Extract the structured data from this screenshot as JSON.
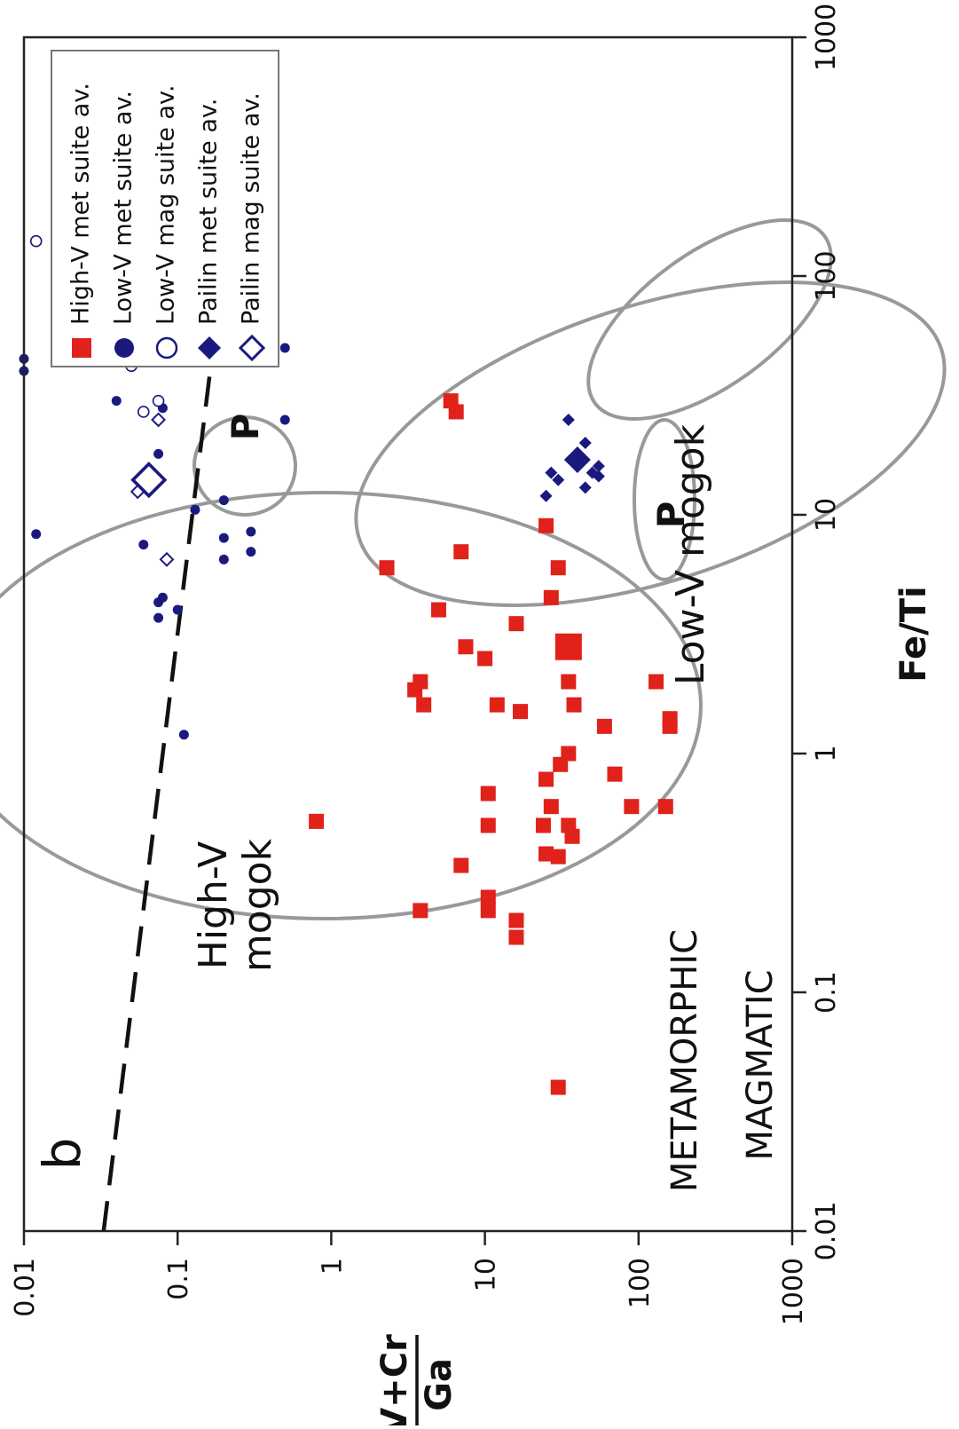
{
  "chart_data": {
    "type": "scatter",
    "panel_label": "b",
    "x_axis": {
      "scale": "log",
      "range": [
        0.01,
        1000
      ],
      "ticks": [
        0.01,
        0.1,
        1,
        10,
        100,
        1000
      ],
      "tick_labels": [
        "0.01",
        "0.1",
        "1",
        "10",
        "100",
        "1000"
      ],
      "label": "Fe/Ti"
    },
    "y_axis": {
      "scale": "log",
      "range": [
        0.01,
        1000
      ],
      "ticks": [
        0.01,
        0.1,
        1,
        10,
        100,
        1000
      ],
      "tick_labels": [
        "0.01",
        "0.1",
        "1",
        "10",
        "100",
        "1000"
      ],
      "label_numerator": "V+Cr",
      "label_denominator": "Ga"
    },
    "grid": false,
    "legend_position": "top-left",
    "colors": {
      "high_v": "#e0221a",
      "blue": "#1a1a7e",
      "ellipse": "#999999"
    },
    "series": [
      {
        "name": "High-V met suite av.",
        "marker": "square-filled",
        "color": "#e0221a",
        "points": [
          [
            0.04,
            30
          ],
          [
            0.17,
            16
          ],
          [
            0.2,
            16
          ],
          [
            0.22,
            10.5
          ],
          [
            0.25,
            10.5
          ],
          [
            0.22,
            3.8
          ],
          [
            0.34,
            7
          ],
          [
            0.37,
            30
          ],
          [
            0.38,
            25
          ],
          [
            0.45,
            37
          ],
          [
            0.5,
            35
          ],
          [
            0.5,
            24
          ],
          [
            0.5,
            10.5
          ],
          [
            0.52,
            0.8
          ],
          [
            0.6,
            150
          ],
          [
            0.6,
            27
          ],
          [
            0.6,
            90
          ],
          [
            0.68,
            10.5
          ],
          [
            0.78,
            25
          ],
          [
            0.82,
            70
          ],
          [
            0.9,
            31
          ],
          [
            1.0,
            35
          ],
          [
            1.3,
            160
          ],
          [
            1.4,
            160
          ],
          [
            1.3,
            60
          ],
          [
            1.5,
            17
          ],
          [
            1.6,
            38
          ],
          [
            1.6,
            12
          ],
          [
            1.6,
            4
          ],
          [
            1.85,
            3.5
          ],
          [
            2.0,
            35
          ],
          [
            2.0,
            3.8
          ],
          [
            2.0,
            130
          ],
          [
            2.5,
            10
          ],
          [
            2.8,
            7.5
          ],
          [
            3.5,
            16
          ],
          [
            4.0,
            5
          ],
          [
            4.5,
            27
          ],
          [
            6.0,
            30
          ],
          [
            6.0,
            2.3
          ],
          [
            7.0,
            7
          ],
          [
            9.0,
            25
          ],
          [
            27,
            6.5
          ],
          [
            30,
            6
          ]
        ],
        "average": [
          2.8,
          35
        ]
      },
      {
        "name": "Low-V met suite av.",
        "marker": "circle-filled",
        "color": "#1a1a7e",
        "points": [
          [
            1.2,
            0.11
          ],
          [
            3.7,
            0.075
          ],
          [
            4.0,
            0.1
          ],
          [
            4.3,
            0.075
          ],
          [
            4.5,
            0.08
          ],
          [
            6.5,
            0.2
          ],
          [
            7.0,
            0.3
          ],
          [
            8.0,
            0.2
          ],
          [
            8.5,
            0.3
          ],
          [
            8.3,
            0.012
          ],
          [
            7.5,
            0.06
          ],
          [
            10.5,
            0.13
          ],
          [
            11.5,
            0.2
          ],
          [
            18.0,
            0.075
          ],
          [
            25,
            0.5
          ],
          [
            28,
            0.08
          ],
          [
            30,
            0.04
          ],
          [
            40,
            0.01
          ],
          [
            45,
            0.01
          ],
          [
            50,
            0.5
          ],
          [
            80,
            0.025
          ],
          [
            85,
            0.06
          ],
          [
            200,
            0.2
          ],
          [
            250,
            0.15
          ],
          [
            260,
            0.13
          ]
        ],
        "average": [
          50,
          0.15
        ]
      },
      {
        "name": "Low-V mag suite av.",
        "marker": "circle-open",
        "color": "#1a1a7e",
        "points": [
          [
            27,
            0.06
          ],
          [
            30,
            0.075
          ],
          [
            42,
            0.05
          ],
          [
            45,
            0.03
          ],
          [
            60,
            0.025
          ],
          [
            120,
            0.035
          ],
          [
            125,
            0.05
          ],
          [
            140,
            0.012
          ]
        ],
        "average": [
          70,
          0.045
        ]
      },
      {
        "name": "Pailin met suite av.",
        "marker": "diamond-filled",
        "color": "#1a1a7e",
        "points": [
          [
            12,
            25
          ],
          [
            13,
            45
          ],
          [
            14,
            30
          ],
          [
            14.5,
            55
          ],
          [
            15,
            50
          ],
          [
            15,
            27
          ],
          [
            16,
            55
          ],
          [
            17,
            38
          ],
          [
            20,
            45
          ],
          [
            25,
            35
          ]
        ],
        "average": [
          17,
          40
        ]
      },
      {
        "name": "Pailin mag suite av.",
        "marker": "diamond-open",
        "color": "#1a1a7e",
        "points": [
          [
            6.5,
            0.085
          ],
          [
            12.5,
            0.055
          ],
          [
            25,
            0.075
          ]
        ],
        "average": [
          14,
          0.065
        ]
      }
    ],
    "regions": [
      {
        "label": "High-V mogok"
      },
      {
        "label": "Low-V mogok"
      },
      {
        "label": "P"
      },
      {
        "label": "P"
      }
    ],
    "divider": {
      "style": "dashed",
      "points": [
        [
          0.01,
          0.033
        ],
        [
          50,
          0.17
        ]
      ],
      "label_above": "METAMORPHIC",
      "label_below": "MAGMATIC"
    }
  }
}
